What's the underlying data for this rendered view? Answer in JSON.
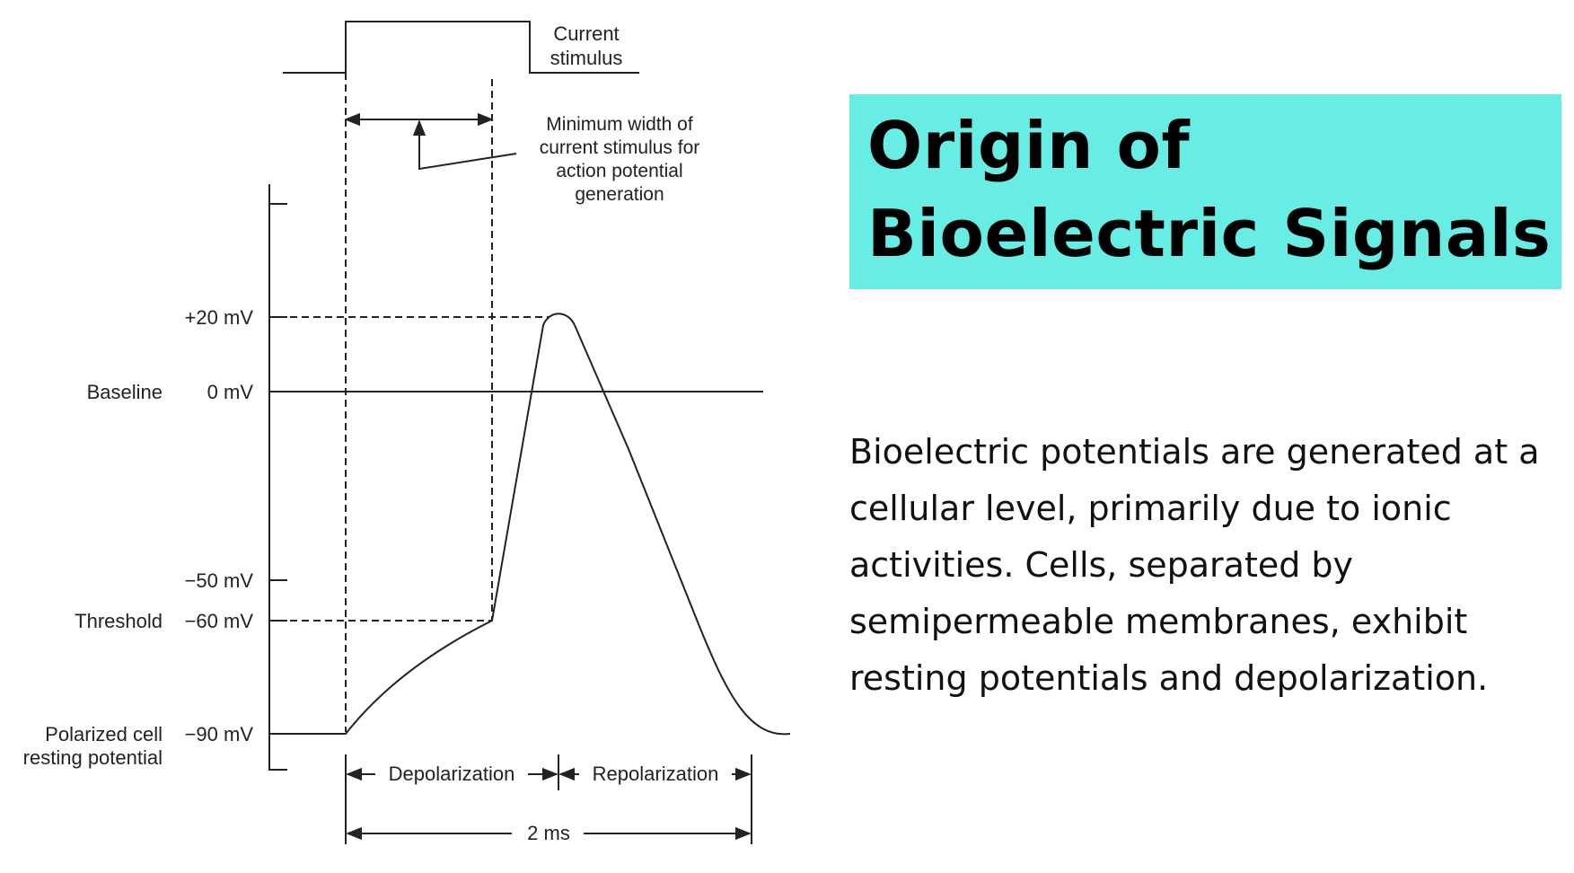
{
  "diagram": {
    "stimulus_label": [
      "Current",
      "stimulus"
    ],
    "min_width_label": [
      "Minimum width of",
      "current stimulus for",
      "action potential",
      "generation"
    ],
    "left_labels": {
      "baseline": "Baseline",
      "threshold": "Threshold",
      "polarized": [
        "Polarized cell",
        "resting potential"
      ]
    },
    "y_ticks": [
      "+20 mV",
      "0 mV",
      "−50 mV",
      "−60 mV",
      "−90 mV"
    ],
    "phases": {
      "depolarization": "Depolarization",
      "repolarization": "Repolarization"
    },
    "duration": "2 ms",
    "colors": {
      "line": "#222222"
    }
  },
  "title": {
    "line1": "Origin of",
    "line2": "Bioelectric Signals",
    "background": "#67ede4"
  },
  "body": "Bioelectric potentials are generated at a cellular level, primarily due to ionic activities. Cells, separated by semipermeable membranes, exhibit resting potentials and depolarization."
}
